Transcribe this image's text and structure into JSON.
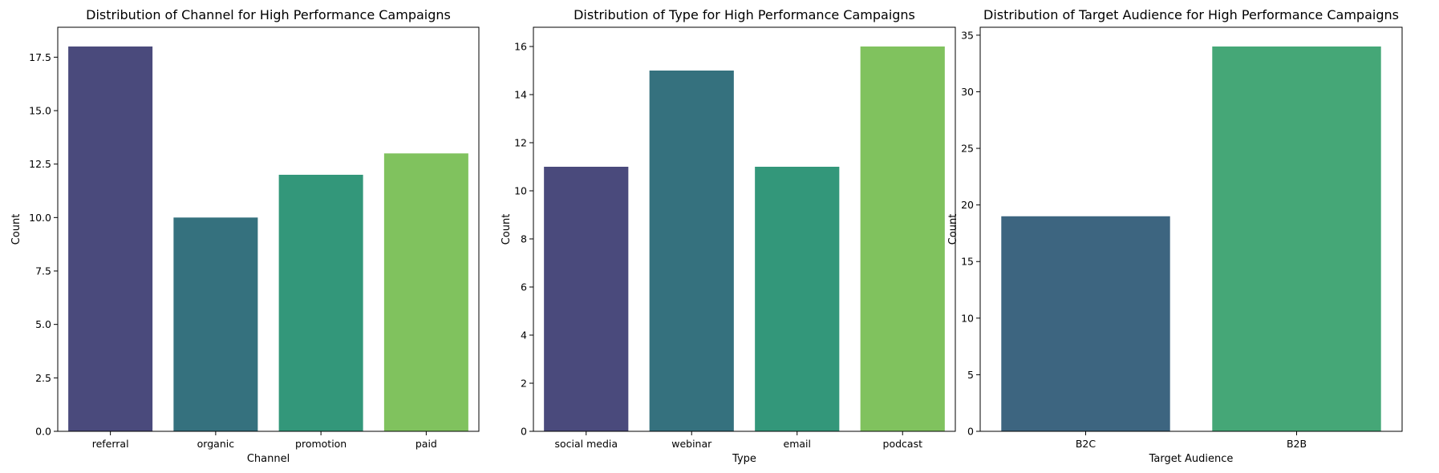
{
  "chart_data": [
    {
      "type": "bar",
      "title": "Distribution of Channel for High Performance Campaigns",
      "xlabel": "Channel",
      "ylabel": "Count",
      "categories": [
        "referral",
        "organic",
        "promotion",
        "paid"
      ],
      "values": [
        18,
        10,
        12,
        13
      ],
      "colors": [
        "#4a4a7c",
        "#35717e",
        "#33977a",
        "#80c25e"
      ],
      "ylim": [
        0,
        18.9
      ],
      "yticks": [
        0,
        2.5,
        5,
        7.5,
        10,
        12.5,
        15,
        17.5
      ],
      "ytick_labels": [
        "0.0",
        "2.5",
        "5.0",
        "7.5",
        "10.0",
        "12.5",
        "15.0",
        "17.5"
      ]
    },
    {
      "type": "bar",
      "title": "Distribution of Type for High Performance Campaigns",
      "xlabel": "Type",
      "ylabel": "Count",
      "categories": [
        "social media",
        "webinar",
        "email",
        "podcast"
      ],
      "values": [
        11,
        15,
        11,
        16
      ],
      "colors": [
        "#4a4a7c",
        "#35717e",
        "#33977a",
        "#80c25e"
      ],
      "ylim": [
        0,
        16.8
      ],
      "yticks": [
        0,
        2,
        4,
        6,
        8,
        10,
        12,
        14,
        16
      ],
      "ytick_labels": [
        "0",
        "2",
        "4",
        "6",
        "8",
        "10",
        "12",
        "14",
        "16"
      ]
    },
    {
      "type": "bar",
      "title": "Distribution of Target Audience for High Performance Campaigns",
      "xlabel": "Target Audience",
      "ylabel": "Count",
      "categories": [
        "B2C",
        "B2B"
      ],
      "values": [
        19,
        34
      ],
      "colors": [
        "#3d6580",
        "#45a777"
      ],
      "ylim": [
        0,
        35.7
      ],
      "yticks": [
        0,
        5,
        10,
        15,
        20,
        25,
        30,
        35
      ],
      "ytick_labels": [
        "0",
        "5",
        "10",
        "15",
        "20",
        "25",
        "30",
        "35"
      ]
    }
  ]
}
